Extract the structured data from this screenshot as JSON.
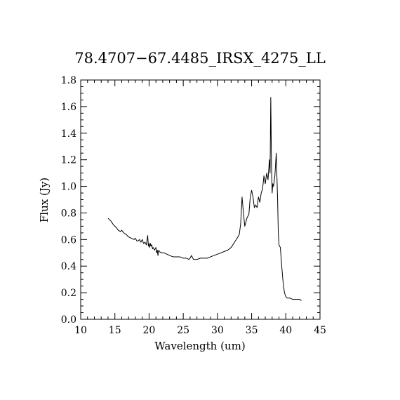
{
  "chart_data": {
    "type": "line",
    "title": "78.4707−67.4485_IRSX_4275_LL",
    "xlabel": "Wavelength (um)",
    "ylabel": "Flux (Jy)",
    "xlim": [
      10,
      45
    ],
    "ylim": [
      0.0,
      1.8
    ],
    "x_ticks": [
      10,
      15,
      20,
      25,
      30,
      35,
      40,
      45
    ],
    "x_tick_labels": [
      "10",
      "15",
      "20",
      "25",
      "30",
      "35",
      "40",
      "45"
    ],
    "y_ticks": [
      0.0,
      0.2,
      0.4,
      0.6,
      0.8,
      1.0,
      1.2,
      1.4,
      1.6,
      1.8
    ],
    "y_tick_labels": [
      "0.0",
      "0.2",
      "0.4",
      "0.6",
      "0.8",
      "1.0",
      "1.2",
      "1.4",
      "1.6",
      "1.8"
    ],
    "grid": false,
    "series": [
      {
        "color": "#000000",
        "x": [
          14.0,
          14.4,
          14.8,
          15.2,
          15.5,
          15.8,
          16.0,
          16.3,
          16.6,
          17.0,
          17.4,
          17.8,
          18.0,
          18.2,
          18.4,
          18.6,
          18.8,
          19.0,
          19.2,
          19.4,
          19.6,
          19.8,
          19.9,
          20.0,
          20.1,
          20.2,
          20.3,
          20.4,
          20.5,
          20.6,
          20.8,
          21.0,
          21.1,
          21.2,
          21.3,
          21.4,
          21.5,
          21.8,
          22.2,
          22.6,
          23.0,
          23.5,
          24.0,
          24.5,
          25.0,
          25.5,
          25.8,
          26.0,
          26.2,
          26.5,
          27.0,
          27.5,
          28.0,
          28.5,
          29.0,
          29.5,
          30.0,
          30.5,
          31.0,
          31.5,
          32.0,
          32.5,
          33.0,
          33.2,
          33.4,
          33.6,
          33.8,
          34.0,
          34.3,
          34.6,
          34.8,
          35.0,
          35.2,
          35.4,
          35.6,
          35.8,
          36.0,
          36.2,
          36.4,
          36.6,
          36.8,
          37.0,
          37.2,
          37.4,
          37.6,
          37.7,
          37.8,
          37.9,
          38.0,
          38.1,
          38.2,
          38.4,
          38.6,
          38.8,
          38.9,
          39.0,
          39.2,
          39.4,
          39.6,
          39.8,
          40.0,
          40.2,
          40.4,
          40.6,
          41.0,
          41.5,
          42.0,
          42.3
        ],
        "y": [
          0.76,
          0.74,
          0.71,
          0.69,
          0.67,
          0.66,
          0.67,
          0.65,
          0.64,
          0.62,
          0.61,
          0.6,
          0.61,
          0.59,
          0.59,
          0.6,
          0.58,
          0.6,
          0.57,
          0.58,
          0.56,
          0.63,
          0.55,
          0.57,
          0.54,
          0.57,
          0.55,
          0.56,
          0.53,
          0.54,
          0.52,
          0.54,
          0.5,
          0.52,
          0.48,
          0.52,
          0.51,
          0.5,
          0.5,
          0.49,
          0.48,
          0.47,
          0.47,
          0.47,
          0.46,
          0.46,
          0.45,
          0.46,
          0.48,
          0.45,
          0.45,
          0.46,
          0.46,
          0.46,
          0.47,
          0.48,
          0.49,
          0.5,
          0.51,
          0.52,
          0.54,
          0.58,
          0.62,
          0.64,
          0.72,
          0.92,
          0.8,
          0.7,
          0.76,
          0.79,
          0.92,
          0.97,
          0.92,
          0.84,
          0.86,
          0.84,
          0.92,
          0.88,
          0.95,
          0.98,
          1.08,
          1.02,
          1.1,
          1.05,
          1.2,
          1.1,
          1.67,
          1.18,
          0.95,
          1.02,
          1.0,
          1.08,
          1.25,
          0.9,
          0.65,
          0.56,
          0.54,
          0.4,
          0.28,
          0.2,
          0.17,
          0.16,
          0.16,
          0.16,
          0.15,
          0.15,
          0.15,
          0.14
        ]
      }
    ]
  }
}
